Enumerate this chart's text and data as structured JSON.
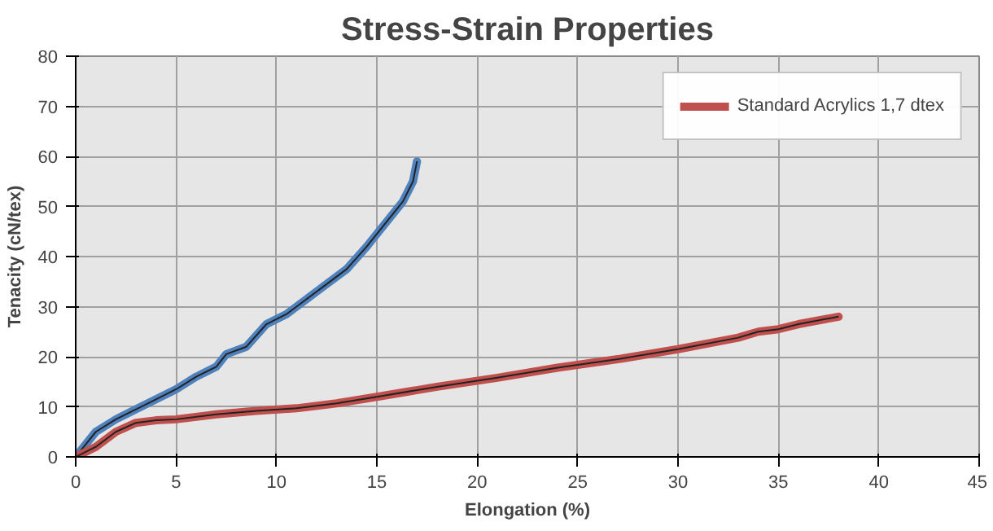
{
  "chart_data": {
    "type": "line",
    "title": "Stress-Strain Properties",
    "xlabel": "Elongation (%)",
    "ylabel": "Tenacity (cN/tex)",
    "xlim": [
      0,
      45
    ],
    "xticks": [
      0,
      5,
      10,
      15,
      20,
      25,
      30,
      35,
      40,
      45
    ],
    "ylim": [
      0,
      80
    ],
    "yticks": [
      0,
      10,
      20,
      30,
      40,
      50,
      60,
      70,
      80
    ],
    "grid": true,
    "legend": "top right",
    "marker": "none",
    "line_style": "solid",
    "series": [
      {
        "color": "#4f81bd",
        "x": [
          0,
          1,
          2,
          3,
          4,
          5,
          6,
          7,
          7.5,
          8.5,
          9.5,
          10.5,
          11.5,
          12.5,
          13.5,
          14.5,
          15.5,
          16.3,
          16.8,
          17
        ],
        "values": [
          0,
          5,
          7.5,
          9.5,
          11.5,
          13.5,
          16,
          18,
          20.5,
          22,
          26.5,
          28.5,
          31.5,
          34.5,
          37.5,
          42,
          47,
          51,
          55,
          59
        ]
      },
      {
        "name": "Standard Acrylics 1,7 dtex",
        "color": "#c0504d",
        "x": [
          0,
          1,
          2,
          3,
          4,
          5,
          7,
          9,
          11,
          13,
          15,
          18,
          21,
          24,
          27,
          30,
          33,
          34,
          35,
          36,
          38
        ],
        "values": [
          0,
          2,
          5,
          6.8,
          7.3,
          7.5,
          8.5,
          9.2,
          9.7,
          10.7,
          12,
          14,
          15.8,
          17.8,
          19.5,
          21.5,
          23.8,
          25,
          25.5,
          26.5,
          28
        ]
      }
    ]
  }
}
